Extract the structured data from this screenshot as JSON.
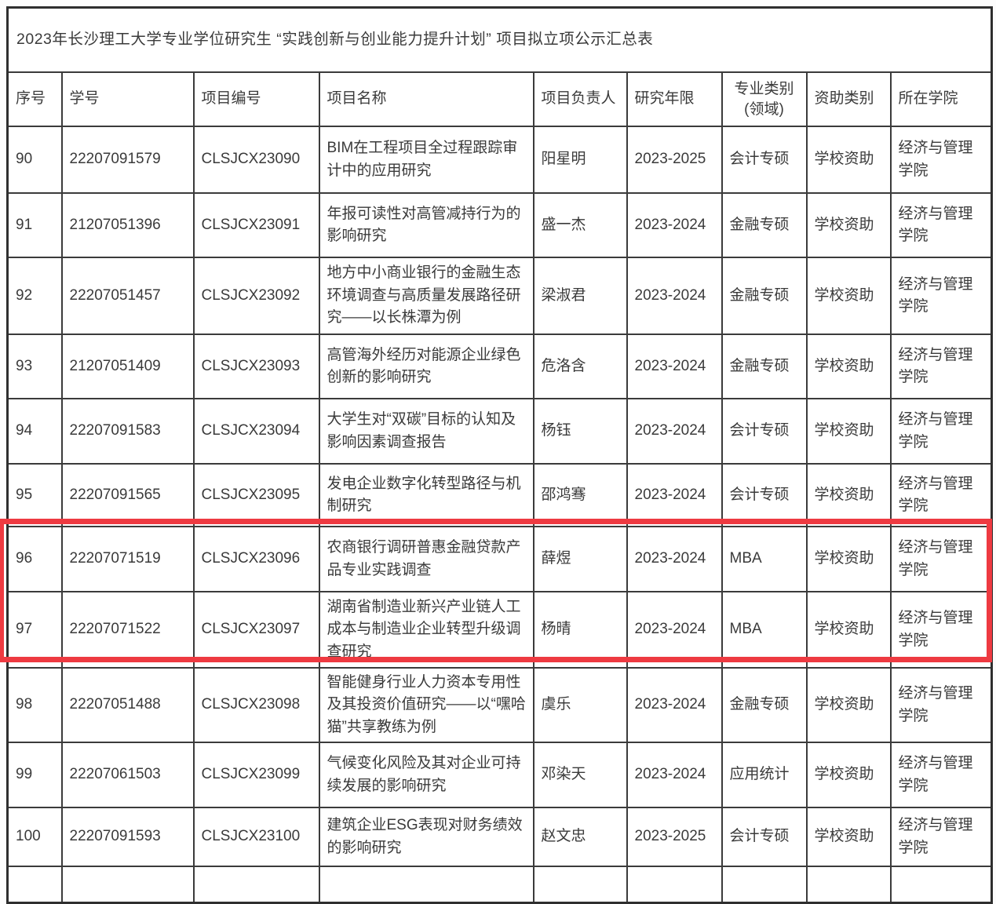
{
  "page": {
    "title": "2023年长沙理工大学专业学位研究生 “实践创新与创业能力提升计划” 项目拟立项公示汇总表"
  },
  "colors": {
    "highlight_border": "#ee3a41",
    "table_border": "#3b3b3b",
    "text": "#3a3a3a",
    "background": "#ffffff"
  },
  "highlight": {
    "type": "red-rectangle-annotation",
    "rows_enclosed": [
      "96",
      "97"
    ]
  },
  "table": {
    "headers": {
      "seq": "序号",
      "student_id": "学号",
      "project_code": "项目编号",
      "project_name": "项目名称",
      "leader": "项目负责人",
      "years": "研究年限",
      "category_line1": "专业类别",
      "category_line2": "(领域)",
      "funding": "资助类别",
      "college": "所在学院"
    },
    "rows": [
      {
        "seq": "90",
        "student_id": "22207091579",
        "project_code": "CLSJCX23090",
        "project_name": "BIM在工程项目全过程跟踪审计中的应用研究",
        "leader": "阳星明",
        "years": "2023-2025",
        "category": "会计专硕",
        "funding": "学校资助",
        "college": "经济与管理学院"
      },
      {
        "seq": "91",
        "student_id": "21207051396",
        "project_code": "CLSJCX23091",
        "project_name": "年报可读性对高管减持行为的影响研究",
        "leader": "盛一杰",
        "years": "2023-2024",
        "category": "金融专硕",
        "funding": "学校资助",
        "college": "经济与管理学院"
      },
      {
        "seq": "92",
        "student_id": "22207051457",
        "project_code": "CLSJCX23092",
        "project_name": "地方中小商业银行的金融生态环境调查与高质量发展路径研究——以长株潭为例",
        "leader": "梁淑君",
        "years": "2023-2024",
        "category": "金融专硕",
        "funding": "学校资助",
        "college": "经济与管理学院"
      },
      {
        "seq": "93",
        "student_id": "21207051409",
        "project_code": "CLSJCX23093",
        "project_name": "高管海外经历对能源企业绿色创新的影响研究",
        "leader": "危洛含",
        "years": "2023-2024",
        "category": "金融专硕",
        "funding": "学校资助",
        "college": "经济与管理学院"
      },
      {
        "seq": "94",
        "student_id": "22207091583",
        "project_code": "CLSJCX23094",
        "project_name": "大学生对“双碳”目标的认知及影响因素调查报告",
        "leader": "杨钰",
        "years": "2023-2024",
        "category": "会计专硕",
        "funding": "学校资助",
        "college": "经济与管理学院"
      },
      {
        "seq": "95",
        "student_id": "22207091565",
        "project_code": "CLSJCX23095",
        "project_name": "发电企业数字化转型路径与机制研究",
        "leader": "邵鸿骞",
        "years": "2023-2024",
        "category": "会计专硕",
        "funding": "学校资助",
        "college": "经济与管理学院"
      },
      {
        "seq": "96",
        "student_id": "22207071519",
        "project_code": "CLSJCX23096",
        "project_name": "农商银行调研普惠金融贷款产品专业实践调查",
        "leader": "薛煜",
        "years": "2023-2024",
        "category": "MBA",
        "funding": "学校资助",
        "college": "经济与管理学院"
      },
      {
        "seq": "97",
        "student_id": "22207071522",
        "project_code": "CLSJCX23097",
        "project_name": "湖南省制造业新兴产业链人工成本与制造业企业转型升级调查研究",
        "leader": "杨晴",
        "years": "2023-2024",
        "category": "MBA",
        "funding": "学校资助",
        "college": "经济与管理学院"
      },
      {
        "seq": "98",
        "student_id": "22207051488",
        "project_code": "CLSJCX23098",
        "project_name": "智能健身行业人力资本专用性及其投资价值研究——以“嘿哈猫”共享教练为例",
        "leader": "虞乐",
        "years": "2023-2024",
        "category": "金融专硕",
        "funding": "学校资助",
        "college": "经济与管理学院"
      },
      {
        "seq": "99",
        "student_id": "22207061503",
        "project_code": "CLSJCX23099",
        "project_name": "气候变化风险及其对企业可持续发展的影响研究",
        "leader": "邓染天",
        "years": "2023-2024",
        "category": "应用统计",
        "funding": "学校资助",
        "college": "经济与管理学院"
      },
      {
        "seq": "100",
        "student_id": "22207091593",
        "project_code": "CLSJCX23100",
        "project_name": "建筑企业ESG表现对财务绩效的影响研究",
        "leader": "赵文忠",
        "years": "2023-2025",
        "category": "会计专硕",
        "funding": "学校资助",
        "college": "经济与管理学院"
      }
    ]
  }
}
